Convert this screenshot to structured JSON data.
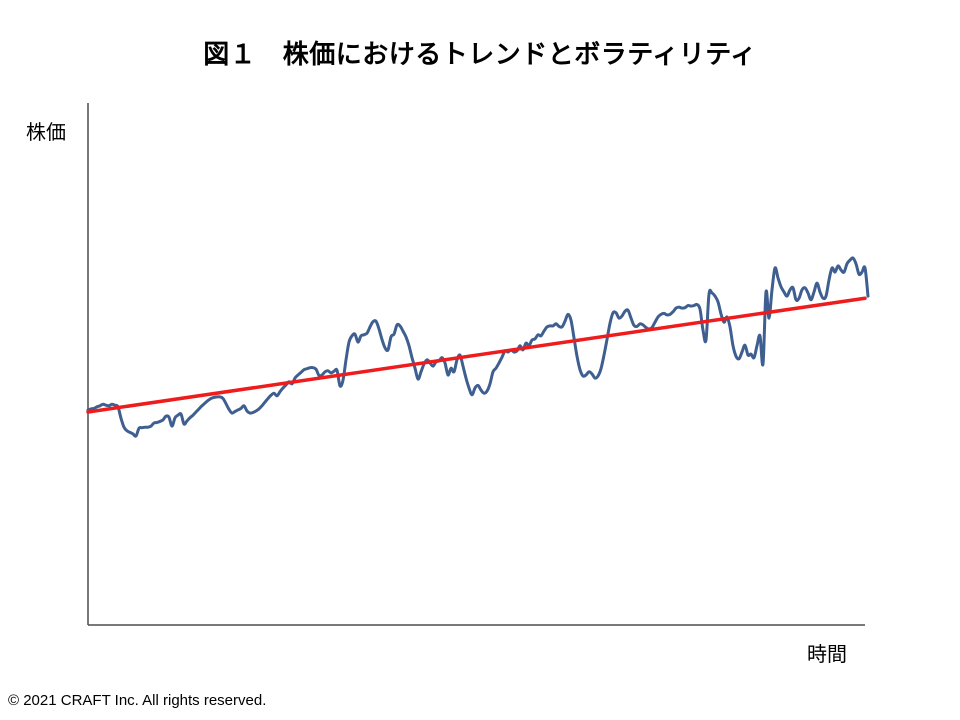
{
  "colors": {
    "series": "#3e5f8f",
    "trend": "#ee1c1c",
    "axis": "#4d4d4d"
  },
  "footer": "© 2021 CRAFT Inc. All rights reserved.",
  "chart_data": {
    "type": "line",
    "title": "図１　株価におけるトレンドとボラティリティ",
    "ylabel": "株価",
    "xlabel": "時間",
    "xlim": [
      0,
      259
    ],
    "ylim": [
      0,
      100
    ],
    "grid": false,
    "legend": "none",
    "series": [
      {
        "values": [
          41.2,
          41.4,
          41.5,
          41.8,
          42.0,
          42.3,
          42.1,
          42.0,
          42.3,
          42.1,
          41.8,
          39.6,
          37.9,
          37.2,
          36.9,
          36.6,
          36.2,
          37.7,
          37.8,
          37.9,
          37.9,
          38.1,
          38.7,
          38.8,
          39.0,
          39.3,
          40.0,
          39.8,
          38.1,
          39.7,
          40.2,
          40.4,
          38.5,
          39.1,
          39.7,
          40.2,
          40.8,
          41.4,
          42.0,
          42.5,
          43.0,
          43.4,
          43.6,
          43.7,
          43.7,
          43.4,
          42.4,
          41.3,
          40.6,
          40.9,
          41.2,
          41.5,
          42.0,
          41.0,
          40.6,
          40.7,
          41.0,
          41.4,
          42.0,
          42.7,
          43.4,
          44.0,
          44.4,
          43.9,
          44.7,
          45.4,
          46.0,
          46.6,
          46.2,
          47.3,
          47.9,
          48.4,
          48.9,
          49.1,
          49.3,
          49.3,
          49.0,
          47.8,
          47.9,
          48.5,
          48.7,
          48.3,
          48.6,
          48.8,
          45.8,
          46.9,
          50.8,
          54.2,
          55.4,
          55.7,
          54.2,
          55.4,
          55.6,
          55.9,
          57.1,
          58.1,
          58.2,
          56.7,
          54.7,
          53.1,
          52.7,
          55.2,
          55.7,
          57.5,
          57.3,
          56.3,
          55.2,
          53.5,
          51.2,
          49.2,
          47.1,
          48.5,
          50.0,
          50.8,
          50.2,
          49.6,
          50.4,
          50.6,
          51.2,
          50.2,
          47.9,
          49.2,
          48.5,
          50.8,
          51.7,
          49.6,
          47.3,
          45.4,
          44.1,
          45.4,
          45.9,
          45.0,
          44.4,
          44.8,
          46.2,
          48.5,
          49.2,
          50.2,
          51.3,
          52.5,
          52.3,
          52.7,
          52.3,
          52.5,
          53.5,
          52.7,
          54.0,
          53.5,
          54.6,
          54.8,
          55.6,
          55.4,
          56.3,
          57.1,
          57.3,
          57.3,
          57.7,
          57.2,
          57.1,
          58.2,
          59.5,
          58.4,
          55.0,
          51.5,
          48.9,
          47.7,
          47.9,
          48.5,
          48.1,
          47.3,
          47.7,
          49.1,
          51.7,
          54.7,
          57.8,
          59.8,
          59.8,
          58.8,
          59.2,
          60.1,
          60.3,
          58.8,
          57.4,
          57.2,
          57.7,
          57.5,
          57.0,
          56.7,
          57.0,
          58.0,
          59.0,
          59.5,
          59.7,
          59.4,
          59.5,
          60.0,
          60.7,
          60.9,
          60.7,
          60.8,
          61.2,
          61.1,
          61.2,
          61.4,
          60.5,
          56.5,
          54.6,
          63.4,
          63.6,
          63.0,
          61.9,
          59.6,
          58.0,
          59.0,
          57.1,
          53.5,
          51.5,
          51.0,
          52.3,
          53.6,
          51.7,
          51.9,
          51.2,
          53.5,
          55.4,
          50.0,
          63.8,
          58.8,
          64.2,
          68.4,
          66.5,
          64.8,
          63.8,
          63.0,
          64.2,
          64.6,
          62.3,
          62.6,
          64.2,
          64.6,
          63.6,
          62.3,
          63.8,
          65.5,
          63.8,
          62.6,
          63.0,
          66.1,
          68.4,
          67.6,
          68.8,
          68.0,
          67.6,
          69.2,
          69.9,
          70.3,
          69.2,
          67.2,
          67.6,
          68.4,
          63.0
        ]
      }
    ],
    "trend_line": {
      "x": [
        0,
        259
      ],
      "y": [
        40.8,
        62.6
      ]
    }
  }
}
